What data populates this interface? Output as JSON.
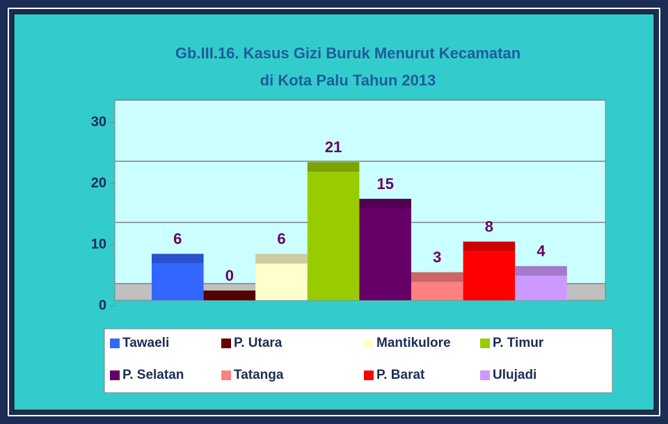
{
  "chart_data": {
    "type": "bar",
    "title": [
      "Gb.III.16.  Kasus Gizi Buruk Menurut Kecamatan",
      "di Kota Palu Tahun 2013"
    ],
    "categories": [
      "Tawaeli",
      "P. Utara",
      "Mantikulore",
      "P. Timur",
      "P. Selatan",
      "Tatanga",
      "P. Barat",
      "Ulujadi"
    ],
    "values": [
      6,
      0,
      6,
      21,
      15,
      3,
      8,
      4
    ],
    "colors": [
      "#3366ff",
      "#660000",
      "#ffffcc",
      "#99cc00",
      "#660066",
      "#ff8080",
      "#ff0000",
      "#cc99ff"
    ],
    "ylim": [
      0,
      30
    ],
    "yticks": [
      0,
      10,
      20,
      30
    ],
    "grid": true,
    "legend": "bottom"
  }
}
